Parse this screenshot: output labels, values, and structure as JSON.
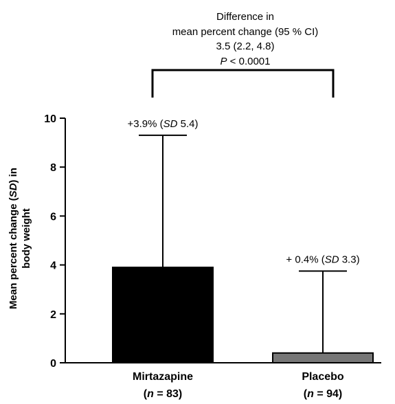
{
  "comparison": {
    "line1": "Difference in",
    "line2": "mean percent change (95 %  CI)",
    "line3": "3.5  (2.2, 4.8)",
    "p_label": "P",
    "p_rest": " < 0.0001"
  },
  "chart_data": {
    "type": "bar",
    "title": "",
    "xlabel": "",
    "ylabel_parts": [
      "Mean percent change (",
      "SD",
      ") in",
      "body  weight"
    ],
    "ylim": [
      0,
      10
    ],
    "yticks": [
      0,
      2,
      4,
      6,
      8,
      10
    ],
    "grid": false,
    "categories": [
      "Mirtazapine",
      "Placebo"
    ],
    "n_labels": [
      {
        "prefix": "(",
        "n": "n",
        "rest": " = 83)"
      },
      {
        "prefix": "(",
        "n": "n",
        "rest": " = 94)"
      }
    ],
    "values": [
      3.9,
      0.4
    ],
    "sd": [
      5.4,
      3.3
    ],
    "error_top": [
      9.3,
      3.75
    ],
    "annotations": [
      {
        "prefix": "+3.9% (",
        "sd": "SD",
        "rest": " 5.4)"
      },
      {
        "prefix": "+ 0.4% (",
        "sd": "SD",
        "rest": " 3.3)"
      }
    ],
    "colors": [
      "#000000",
      "#777777"
    ]
  }
}
